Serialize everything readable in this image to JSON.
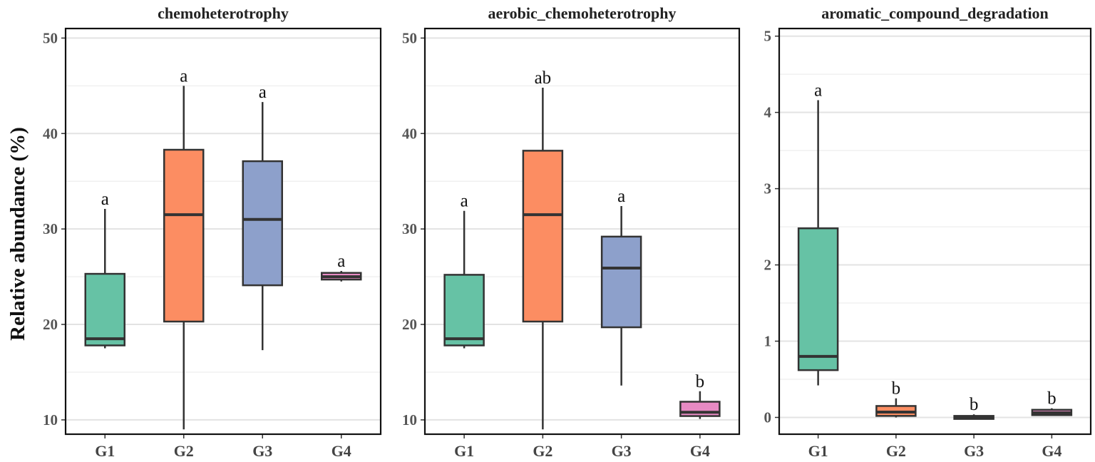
{
  "chart_data": [
    {
      "type": "boxplot",
      "title": "chemoheterotrophy",
      "ylabel": "Relative abundance (%)",
      "ylim": [
        8.5,
        51
      ],
      "yticks": [
        10,
        20,
        30,
        40,
        50
      ],
      "categories": [
        "G1",
        "G2",
        "G3",
        "G4"
      ],
      "colors": [
        "#66c2a5",
        "#fc8d62",
        "#8da0cb",
        "#e78ac3"
      ],
      "boxes": [
        {
          "group": "G1",
          "min": 17.5,
          "q1": 17.8,
          "median": 18.5,
          "q3": 25.3,
          "max": 32.1,
          "label": "a"
        },
        {
          "group": "G2",
          "min": 9.0,
          "q1": 20.3,
          "median": 31.5,
          "q3": 38.3,
          "max": 45.0,
          "label": "a"
        },
        {
          "group": "G3",
          "min": 17.3,
          "q1": 24.1,
          "median": 31.0,
          "q3": 37.1,
          "max": 43.3,
          "label": "a"
        },
        {
          "group": "G4",
          "min": 24.5,
          "q1": 24.7,
          "median": 25.0,
          "q3": 25.4,
          "max": 25.6,
          "label": "a"
        }
      ]
    },
    {
      "type": "boxplot",
      "title": "aerobic_chemoheterotrophy",
      "ylabel": "",
      "ylim": [
        8.5,
        51
      ],
      "yticks": [
        10,
        20,
        30,
        40,
        50
      ],
      "categories": [
        "G1",
        "G2",
        "G3",
        "G4"
      ],
      "colors": [
        "#66c2a5",
        "#fc8d62",
        "#8da0cb",
        "#e78ac3"
      ],
      "boxes": [
        {
          "group": "G1",
          "min": 17.5,
          "q1": 17.8,
          "median": 18.5,
          "q3": 25.2,
          "max": 31.9,
          "label": "a"
        },
        {
          "group": "G2",
          "min": 9.0,
          "q1": 20.3,
          "median": 31.5,
          "q3": 38.2,
          "max": 44.8,
          "label": "ab"
        },
        {
          "group": "G3",
          "min": 13.6,
          "q1": 19.7,
          "median": 25.9,
          "q3": 29.2,
          "max": 32.4,
          "label": "a"
        },
        {
          "group": "G4",
          "min": 10.1,
          "q1": 10.4,
          "median": 10.8,
          "q3": 11.9,
          "max": 13.0,
          "label": "b"
        }
      ]
    },
    {
      "type": "boxplot",
      "title": "aromatic_compound_degradation",
      "ylabel": "",
      "ylim": [
        -0.22,
        5.1
      ],
      "yticks": [
        0,
        1,
        2,
        3,
        4,
        5
      ],
      "categories": [
        "G1",
        "G2",
        "G3",
        "G4"
      ],
      "colors": [
        "#66c2a5",
        "#fc8d62",
        "#8da0cb",
        "#e78ac3"
      ],
      "boxes": [
        {
          "group": "G1",
          "min": 0.42,
          "q1": 0.62,
          "median": 0.8,
          "q3": 2.48,
          "max": 4.16,
          "label": "a"
        },
        {
          "group": "G2",
          "min": 0.0,
          "q1": 0.02,
          "median": 0.07,
          "q3": 0.15,
          "max": 0.25,
          "label": "b"
        },
        {
          "group": "G3",
          "min": -0.02,
          "q1": -0.02,
          "median": 0.0,
          "q3": 0.02,
          "max": 0.04,
          "label": "b",
          "fill_override": "#fc8d62"
        },
        {
          "group": "G4",
          "min": 0.02,
          "q1": 0.03,
          "median": 0.06,
          "q3": 0.1,
          "max": 0.12,
          "label": "b"
        }
      ]
    }
  ]
}
